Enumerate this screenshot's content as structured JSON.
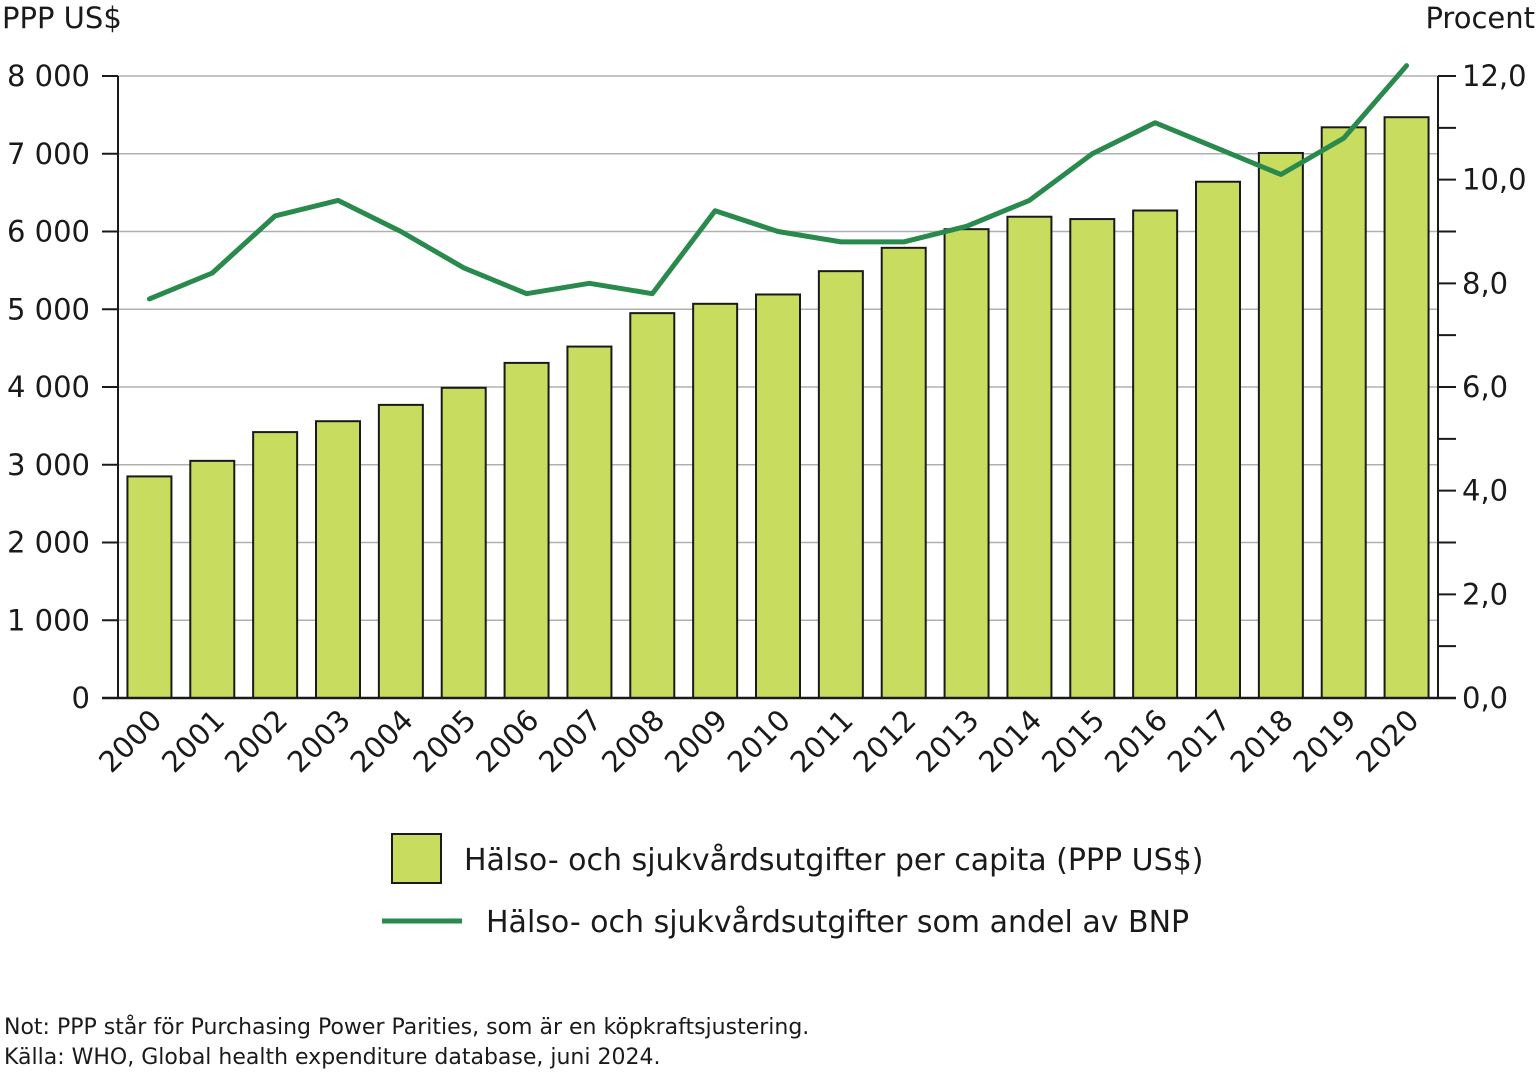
{
  "chart_data": {
    "type": "bar",
    "categories": [
      "2000",
      "2001",
      "2002",
      "2003",
      "2004",
      "2005",
      "2006",
      "2007",
      "2008",
      "2009",
      "2010",
      "2011",
      "2012",
      "2013",
      "2014",
      "2015",
      "2016",
      "2017",
      "2018",
      "2019",
      "2020"
    ],
    "series": [
      {
        "name": "Hälso- och sjukvårdsutgifter per capita (PPP US$)",
        "type": "bar",
        "axis": "left",
        "values": [
          2850,
          3050,
          3420,
          3560,
          3770,
          3990,
          4310,
          4520,
          4950,
          5070,
          5190,
          5490,
          5790,
          6030,
          6190,
          6160,
          6270,
          6640,
          7010,
          7340,
          7470
        ]
      },
      {
        "name": "Hälso- och sjukvårdsutgifter som andel av BNP",
        "type": "line",
        "axis": "right",
        "values": [
          7.7,
          8.2,
          9.3,
          9.6,
          9.0,
          8.3,
          7.8,
          8.0,
          7.8,
          9.4,
          9.0,
          8.8,
          8.8,
          9.1,
          9.6,
          10.5,
          11.1,
          10.6,
          10.1,
          10.8,
          12.2
        ]
      }
    ],
    "ylabel": "PPP US$",
    "y2label": "Procent",
    "ylim": [
      0,
      8000
    ],
    "y2lim": [
      0,
      12
    ],
    "yticks": [
      "0",
      "1 000",
      "2 000",
      "3 000",
      "4 000",
      "5 000",
      "6 000",
      "7 000",
      "8 000"
    ],
    "y2ticks": [
      "0,0",
      "2,0",
      "4,0",
      "6,0",
      "8,0",
      "10,0",
      "12,0"
    ],
    "grid": true,
    "legend_position": "bottom",
    "colors": {
      "bar": "#c8dc5f",
      "bar_stroke": "#1a1a1a",
      "line": "#2a8a4e",
      "grid": "#b0b0b0"
    }
  },
  "notes": {
    "note": "Not: PPP står för Purchasing Power Parities, som är en köpkraftsjustering.",
    "source": "Källa: WHO, Global health expenditure database, juni 2024."
  }
}
